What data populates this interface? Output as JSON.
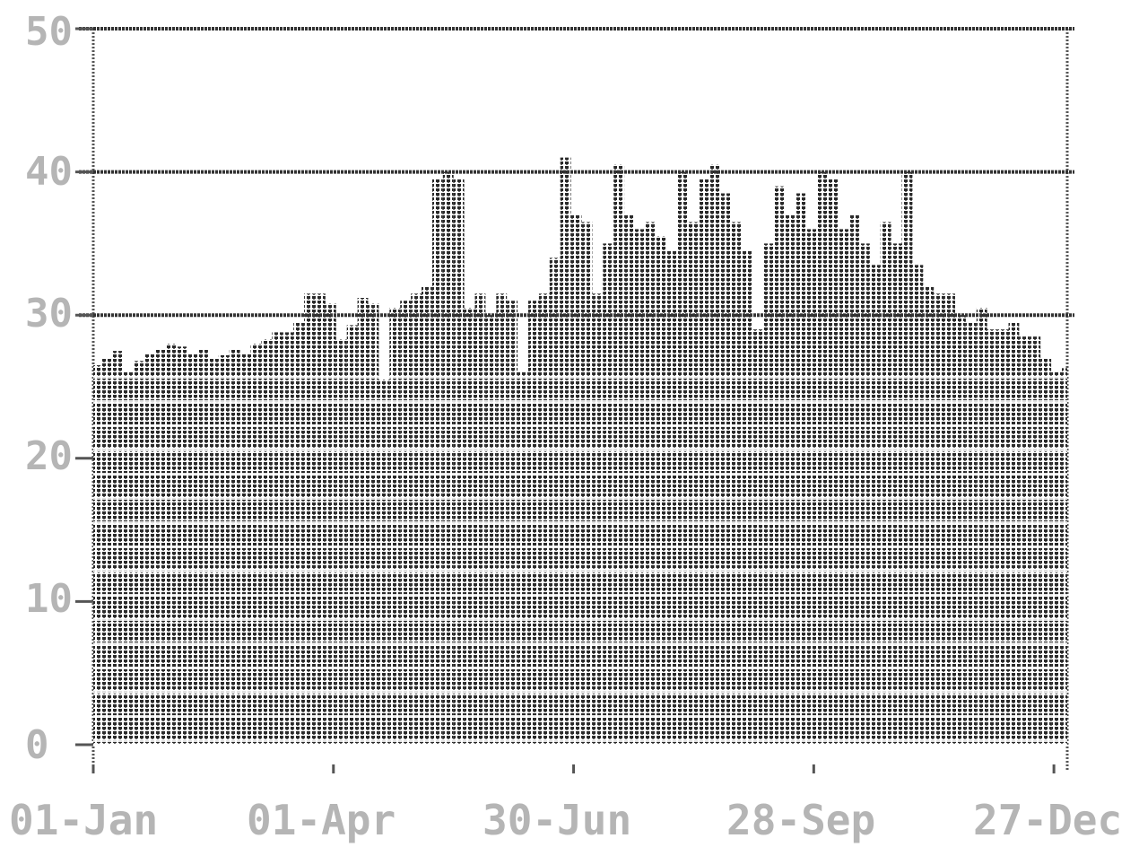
{
  "chart_data": {
    "type": "bar",
    "title": "",
    "xlabel": "",
    "ylabel": "",
    "ylim": [
      0,
      50
    ],
    "y_ticks": [
      "0",
      "10",
      "20",
      "30",
      "40",
      "50"
    ],
    "x_tick_labels": [
      "01-Jan",
      "01-Apr",
      "30-Jun",
      "28-Sep",
      "27-Dec"
    ],
    "x_tick_days": [
      0,
      90,
      180,
      270,
      360
    ],
    "reference_lines": [
      30,
      40,
      50
    ],
    "grid": false,
    "legend": "none",
    "style": "dot-matrix printout",
    "colors": {
      "bars": "#2a2a2a",
      "axis": "#555555",
      "ref_lines": "#333333",
      "labels": "#b5b5b5"
    },
    "days": [
      1,
      5,
      9,
      13,
      17,
      21,
      25,
      29,
      33,
      37,
      41,
      45,
      49,
      53,
      57,
      61,
      65,
      69,
      73,
      77,
      81,
      85,
      89,
      93,
      97,
      101,
      105,
      109,
      113,
      117,
      121,
      125,
      129,
      133,
      137,
      141,
      145,
      149,
      153,
      157,
      161,
      165,
      169,
      173,
      177,
      181,
      185,
      189,
      193,
      197,
      201,
      205,
      209,
      213,
      217,
      221,
      225,
      229,
      233,
      237,
      241,
      245,
      249,
      253,
      257,
      261,
      265,
      269,
      273,
      277,
      281,
      285,
      289,
      293,
      297,
      301,
      305,
      309,
      313,
      317,
      321,
      325,
      329,
      333,
      337,
      341,
      345,
      349,
      353,
      357,
      361,
      365
    ],
    "values": [
      26.5,
      27,
      27.5,
      26,
      26.8,
      27.3,
      27.6,
      28,
      27.8,
      27.3,
      27.6,
      27,
      27.2,
      27.6,
      27.3,
      28,
      28.3,
      28.8,
      28.8,
      29.5,
      31.5,
      31.5,
      30.8,
      28.3,
      29.3,
      31.2,
      30.8,
      25.5,
      30.5,
      31,
      31.5,
      32,
      39.5,
      40,
      39.5,
      30.5,
      31.5,
      30,
      31.5,
      31,
      26,
      31,
      31.5,
      34,
      41,
      37,
      36.5,
      31.5,
      35,
      40.5,
      37,
      36,
      36.5,
      35.5,
      34.5,
      40,
      36.5,
      39.5,
      40.5,
      38.5,
      36.5,
      34.5,
      29,
      35,
      39,
      37,
      38.5,
      36,
      40,
      39.5,
      36,
      37,
      35,
      33.5,
      36.5,
      35,
      40,
      33.5,
      32,
      31.5,
      31.5,
      30,
      29.5,
      30.5,
      29,
      29,
      29.5,
      28.5,
      28.5,
      27,
      26,
      26.3
    ]
  }
}
